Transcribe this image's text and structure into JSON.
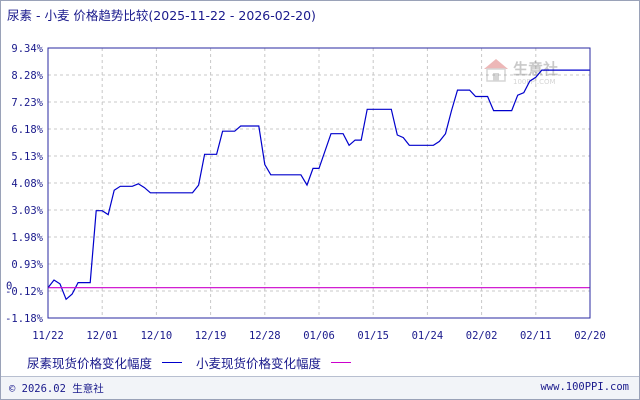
{
  "title": "尿素 - 小麦 价格趋势比较(2025-11-22 - 2026-02-20)",
  "watermark": {
    "cn": "生意社",
    "en": "100PPI.COM"
  },
  "legend": [
    {
      "label": "尿素现货价格变化幅度",
      "color": "#0000cc"
    },
    {
      "label": "小麦现货价格变化幅度",
      "color": "#cc00cc"
    }
  ],
  "footer": {
    "left": "© 2026.02 生意社",
    "right": "www.100PPI.com"
  },
  "chart_data": {
    "type": "line",
    "ylim": [
      -1.18,
      9.34
    ],
    "yticks": [
      "9.34%",
      "8.28%",
      "7.23%",
      "6.18%",
      "5.13%",
      "4.08%",
      "3.03%",
      "1.98%",
      "0.93%",
      "-0.12%",
      "-1.18%"
    ],
    "yzero_label": "0",
    "xlim": [
      0,
      90
    ],
    "xticks": [
      {
        "label": "11/22",
        "day": 0
      },
      {
        "label": "12/01",
        "day": 9
      },
      {
        "label": "12/10",
        "day": 18
      },
      {
        "label": "12/19",
        "day": 27
      },
      {
        "label": "12/28",
        "day": 36
      },
      {
        "label": "01/06",
        "day": 45
      },
      {
        "label": "01/15",
        "day": 54
      },
      {
        "label": "01/24",
        "day": 63
      },
      {
        "label": "02/02",
        "day": 72
      },
      {
        "label": "02/11",
        "day": 81
      },
      {
        "label": "02/20",
        "day": 90
      }
    ],
    "series": [
      {
        "name": "尿素现货价格变化幅度",
        "color": "#0000cc",
        "points": [
          [
            0,
            0
          ],
          [
            1,
            0.3
          ],
          [
            2,
            0.15
          ],
          [
            3,
            -0.45
          ],
          [
            4,
            -0.25
          ],
          [
            5,
            0.2
          ],
          [
            7,
            0.2
          ],
          [
            8,
            3.0
          ],
          [
            9,
            3.0
          ],
          [
            10,
            2.85
          ],
          [
            11,
            3.8
          ],
          [
            12,
            3.95
          ],
          [
            14,
            3.95
          ],
          [
            15,
            4.05
          ],
          [
            16,
            3.9
          ],
          [
            17,
            3.7
          ],
          [
            24,
            3.7
          ],
          [
            25,
            4.0
          ],
          [
            26,
            5.2
          ],
          [
            28,
            5.2
          ],
          [
            29,
            6.1
          ],
          [
            31,
            6.1
          ],
          [
            32,
            6.3
          ],
          [
            35,
            6.3
          ],
          [
            36,
            4.8
          ],
          [
            37,
            4.4
          ],
          [
            42,
            4.4
          ],
          [
            43,
            4.0
          ],
          [
            44,
            4.65
          ],
          [
            45,
            4.65
          ],
          [
            47,
            6.0
          ],
          [
            49,
            6.0
          ],
          [
            50,
            5.55
          ],
          [
            51,
            5.75
          ],
          [
            52,
            5.75
          ],
          [
            53,
            6.95
          ],
          [
            57,
            6.95
          ],
          [
            58,
            5.95
          ],
          [
            59,
            5.85
          ],
          [
            60,
            5.55
          ],
          [
            64,
            5.55
          ],
          [
            65,
            5.7
          ],
          [
            66,
            6.0
          ],
          [
            67,
            6.9
          ],
          [
            68,
            7.7
          ],
          [
            70,
            7.7
          ],
          [
            71,
            7.45
          ],
          [
            73,
            7.45
          ],
          [
            74,
            6.9
          ],
          [
            77,
            6.9
          ],
          [
            78,
            7.5
          ],
          [
            79,
            7.6
          ],
          [
            80,
            8.05
          ],
          [
            81,
            8.2
          ],
          [
            82,
            8.48
          ],
          [
            90,
            8.48
          ]
        ]
      },
      {
        "name": "小麦现货价格变化幅度",
        "color": "#cc00cc",
        "points": [
          [
            0,
            0
          ],
          [
            90,
            0
          ]
        ]
      }
    ]
  }
}
